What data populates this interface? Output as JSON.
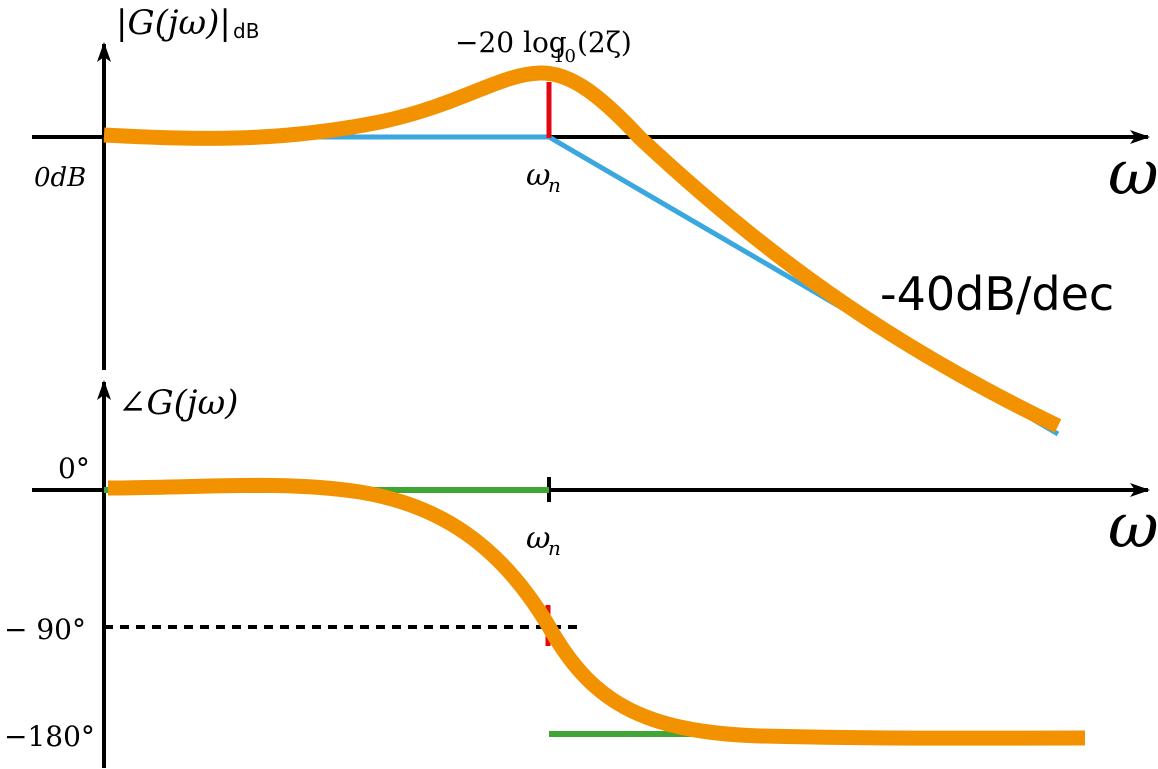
{
  "magnitude_plot": {
    "axis_label_main": "|G(jω)|",
    "axis_label_sub": "dB",
    "zero_label": "0dB",
    "peak_label_prefix": "−20 log",
    "peak_label_base": "10",
    "peak_label_suffix": "(2ζ)",
    "corner_label": "ω",
    "corner_sub": "n",
    "slope_label": "-40dB/dec",
    "x_axis_symbol": "ω"
  },
  "phase_plot": {
    "axis_label": "∠G(jω)",
    "tick_0": "0°",
    "tick_minus90": "− 90°",
    "tick_minus180": "−180°",
    "corner_label": "ω",
    "corner_sub": "n",
    "x_axis_symbol": "ω"
  },
  "colors": {
    "axis": "#000000",
    "actual_curve": "#F39200",
    "magnitude_asymptote": "#3AA8DF",
    "phase_asymptote": "#3FA535",
    "marker": "#E30613"
  }
}
